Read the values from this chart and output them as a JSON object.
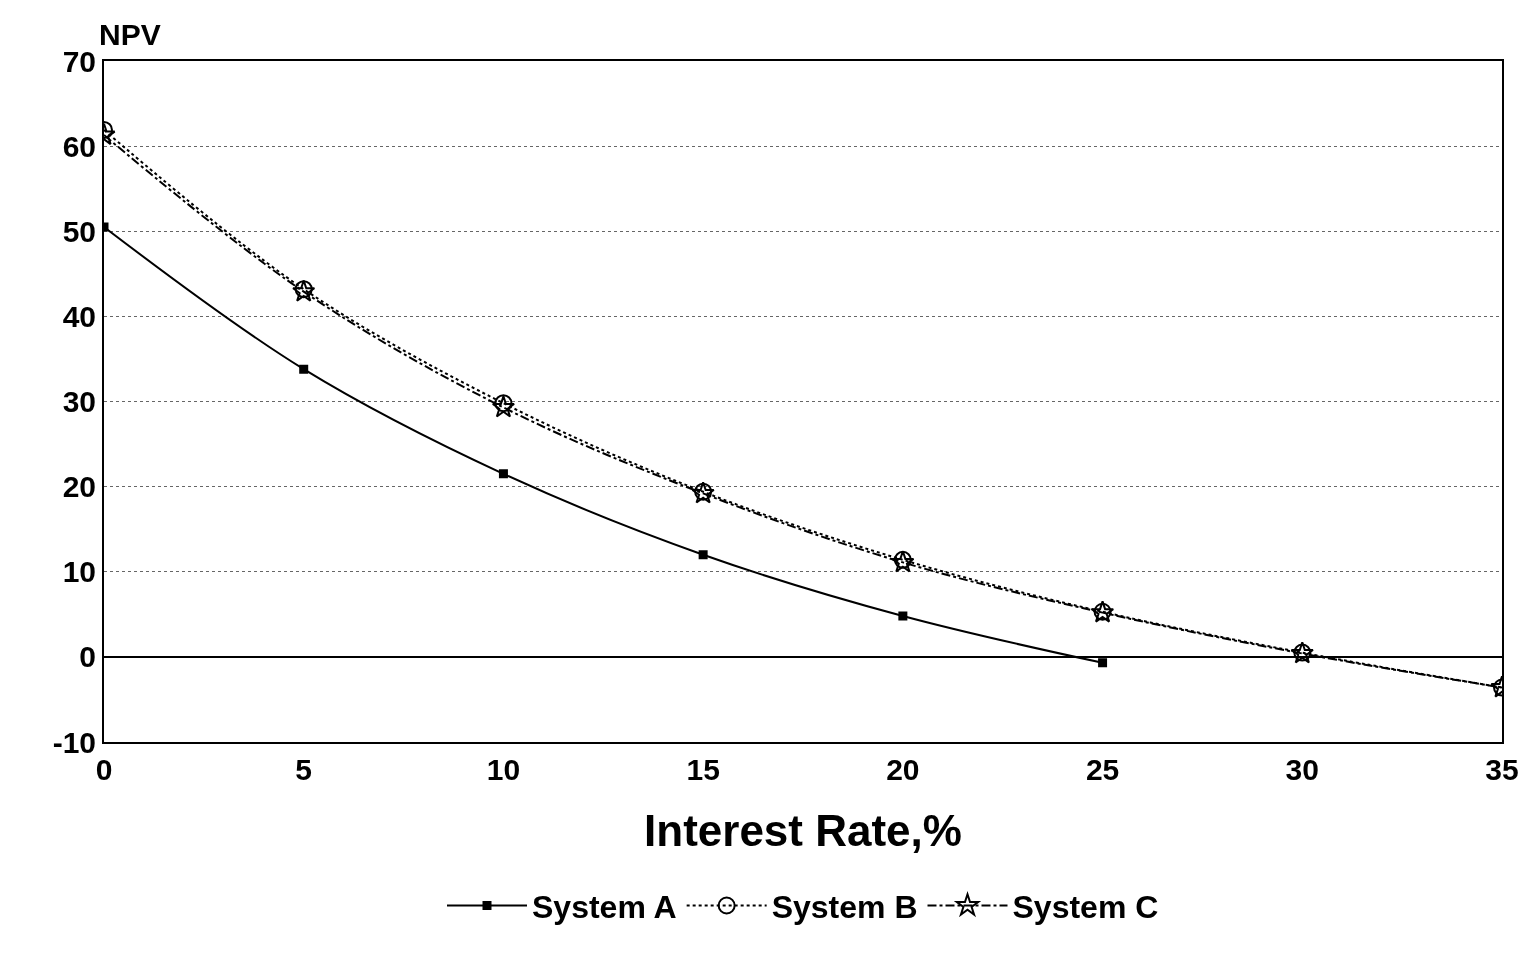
{
  "chart_data": {
    "type": "line",
    "ylabel": "NPV",
    "xlabel": "Interest Rate,%",
    "xlim": [
      0,
      35
    ],
    "xticks": [
      0,
      5,
      10,
      15,
      20,
      25,
      30,
      35
    ],
    "ylim": [
      -10,
      70
    ],
    "yticks": [
      -10,
      0,
      10,
      20,
      30,
      40,
      50,
      60,
      70
    ],
    "grid": "y",
    "legend": "bottom",
    "ref_lines": [
      {
        "axis": "y",
        "value": 0,
        "color": "#000000",
        "line_style": "solid"
      }
    ],
    "series": [
      {
        "name": "System A",
        "color": "#000000",
        "marker": "square",
        "line_style": "solid",
        "x": [
          0,
          5,
          10,
          15,
          20,
          25
        ],
        "values": [
          50.5,
          33.8,
          21.5,
          12.0,
          4.8,
          -0.7
        ]
      },
      {
        "name": "System B",
        "color": "#000000",
        "marker": "circle",
        "line_style": "dotted",
        "x": [
          0,
          5,
          10,
          15,
          20,
          25,
          30,
          35
        ],
        "values": [
          61.9,
          43.2,
          29.8,
          19.4,
          11.4,
          5.3,
          0.5,
          -3.6
        ]
      },
      {
        "name": "System C",
        "color": "#000000",
        "marker": "star",
        "line_style": "dashed",
        "x": [
          0,
          5,
          10,
          15,
          20,
          25,
          30,
          35
        ],
        "values": [
          61.3,
          42.9,
          29.3,
          19.2,
          11.1,
          5.2,
          0.4,
          -3.6
        ]
      }
    ]
  }
}
